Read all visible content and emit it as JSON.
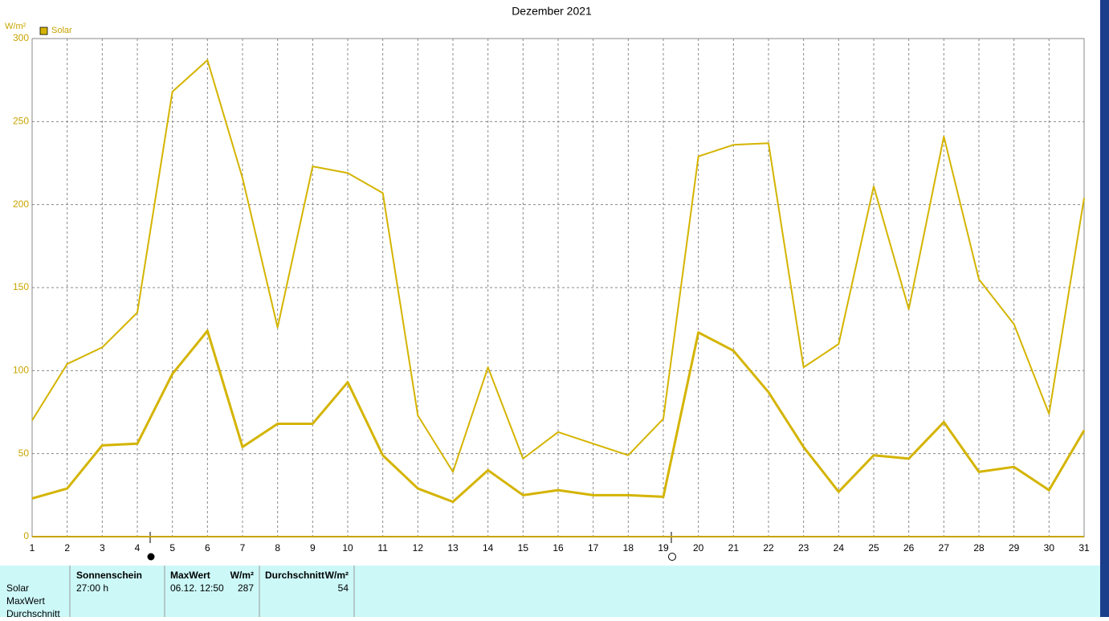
{
  "chart_data": {
    "type": "line",
    "title": "Dezember 2021",
    "y_label": "W/m²",
    "legend": "top-left",
    "grid": true,
    "x": [
      1,
      2,
      3,
      4,
      5,
      6,
      7,
      8,
      9,
      10,
      11,
      12,
      13,
      14,
      15,
      16,
      17,
      18,
      19,
      20,
      21,
      22,
      23,
      24,
      25,
      26,
      27,
      28,
      29,
      30,
      31
    ],
    "xlim": [
      1,
      31
    ],
    "xticks": [
      1,
      2,
      3,
      4,
      5,
      6,
      7,
      8,
      9,
      10,
      11,
      12,
      13,
      14,
      15,
      16,
      17,
      18,
      19,
      20,
      21,
      22,
      23,
      24,
      25,
      26,
      27,
      28,
      29,
      30,
      31
    ],
    "ylim": [
      0,
      300
    ],
    "yticks": [
      0,
      50,
      100,
      150,
      200,
      250,
      300
    ],
    "series": [
      {
        "name": "Solar",
        "color": "#d4b400",
        "values": [
          23,
          29,
          55,
          56,
          98,
          124,
          54,
          68,
          68,
          93,
          49,
          29,
          21,
          40,
          25,
          28,
          25,
          25,
          24,
          123,
          112,
          87,
          54,
          27,
          49,
          47,
          69,
          39,
          42,
          28,
          64
        ]
      },
      {
        "color": "#d4b400",
        "values": [
          70,
          104,
          114,
          135,
          268,
          287,
          216,
          126,
          223,
          219,
          207,
          73,
          39,
          102,
          47,
          63,
          56,
          49,
          71,
          229,
          236,
          237,
          102,
          116,
          211,
          137,
          241,
          155,
          128,
          74,
          204
        ]
      }
    ]
  },
  "table": {
    "row_labels": [
      "Solar",
      "MaxWert",
      "Durchschnitt"
    ],
    "columns": [
      {
        "header": "Sonnenschein",
        "value": "27:00 h"
      },
      {
        "header": "MaxWert",
        "unit": "W/m²",
        "date": "06.12. 12:50",
        "value": 287
      },
      {
        "header": "Durchschnitt",
        "unit": "W/m²",
        "value": 54
      }
    ]
  }
}
